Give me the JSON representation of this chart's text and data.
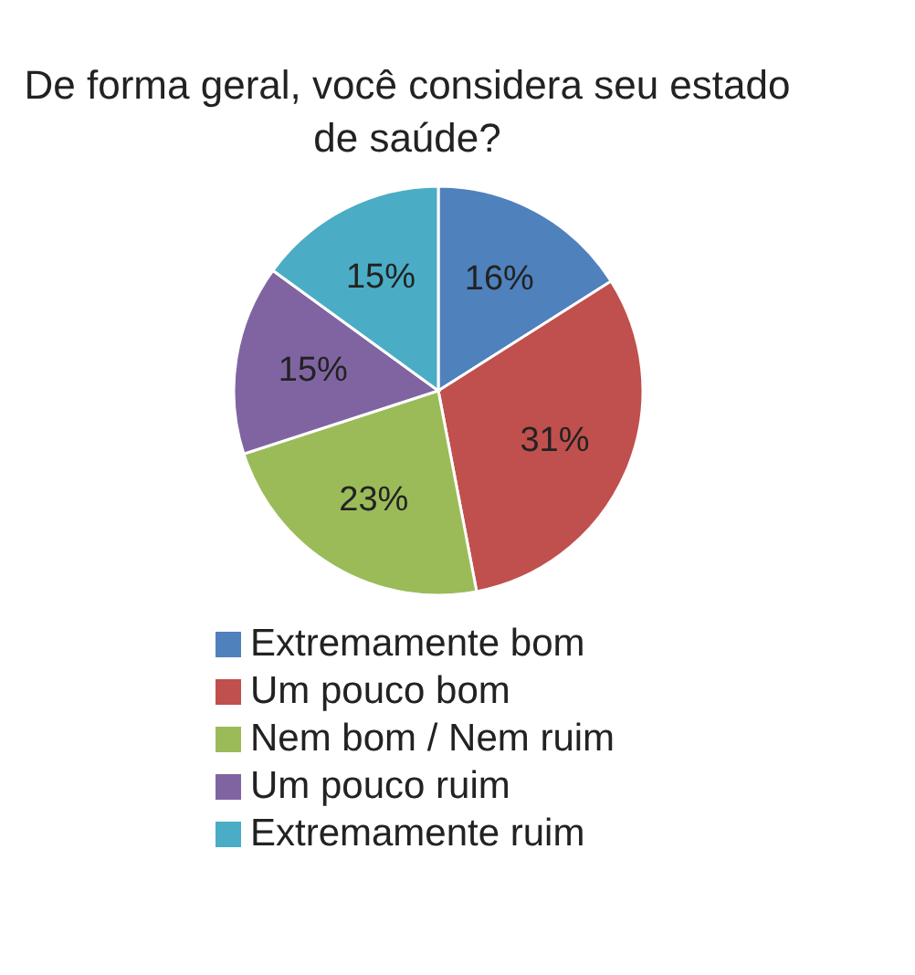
{
  "chart_data": {
    "type": "pie",
    "title": "De forma geral, você considera seu estado de saúde?",
    "categories": [
      "Extremamente bom",
      "Um pouco bom",
      "Nem bom / Nem ruim",
      "Um pouco ruim",
      "Extremamente ruim"
    ],
    "values": [
      16,
      31,
      23,
      15,
      15
    ],
    "value_labels": [
      "16%",
      "31%",
      "23%",
      "15%",
      "15%"
    ],
    "colors": [
      "#4f81bd",
      "#c0504d",
      "#9bbb59",
      "#8064a2",
      "#4bacc6"
    ],
    "legend": "bottom"
  }
}
